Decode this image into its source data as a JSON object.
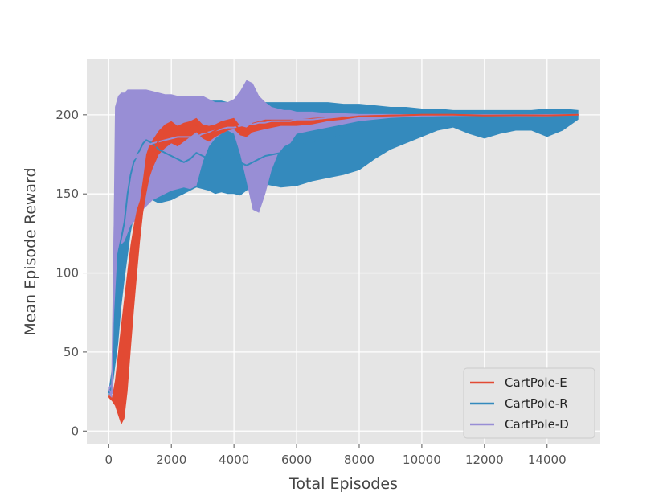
{
  "chart_data": {
    "type": "line",
    "xlabel": "Total Episodes",
    "ylabel": "Mean Episode Reward",
    "xlim": [
      -700,
      15700
    ],
    "ylim": [
      -8,
      235
    ],
    "xticks": [
      0,
      2000,
      4000,
      6000,
      8000,
      10000,
      12000,
      14000
    ],
    "yticks": [
      0,
      50,
      100,
      150,
      200
    ],
    "grid": true,
    "legend_position": "lower-right",
    "colors": {
      "background": "#e5e5e5",
      "grid": "#ffffff"
    },
    "series": [
      {
        "name": "CartPole-E",
        "color": "#e24a33",
        "x": [
          0,
          100,
          200,
          300,
          400,
          500,
          600,
          700,
          800,
          900,
          1000,
          1100,
          1200,
          1300,
          1400,
          1600,
          1800,
          2000,
          2200,
          2400,
          2600,
          2800,
          3000,
          3200,
          3400,
          3600,
          3800,
          4000,
          4200,
          4400,
          4600,
          4800,
          5000,
          5500,
          6000,
          6500,
          7000,
          7500,
          8000,
          9000,
          10000,
          11000,
          12000,
          13000,
          14000,
          15000
        ],
        "mean": [
          22,
          20,
          24,
          30,
          40,
          50,
          65,
          82,
          100,
          120,
          138,
          152,
          165,
          172,
          176,
          184,
          188,
          190,
          187,
          189,
          191,
          194,
          190,
          188,
          190,
          192,
          194,
          195,
          190,
          189,
          192,
          193,
          194,
          195,
          195,
          196,
          197,
          198,
          199,
          199.5,
          200,
          200,
          199.5,
          199.7,
          199.6,
          200
        ],
        "lower": [
          21,
          19,
          16,
          10,
          4,
          8,
          25,
          50,
          75,
          98,
          120,
          138,
          150,
          160,
          166,
          175,
          179,
          182,
          180,
          183,
          186,
          189,
          185,
          183,
          186,
          188,
          190,
          191,
          187,
          186,
          189,
          190,
          191,
          193,
          193,
          194,
          196,
          197,
          198.5,
          199,
          199.5,
          199.5,
          199,
          199.3,
          199.2,
          199.6
        ],
        "upper": [
          23,
          21,
          32,
          50,
          68,
          85,
          102,
          118,
          130,
          140,
          146,
          160,
          175,
          181,
          184,
          190,
          194,
          196,
          193,
          195,
          196,
          198,
          194,
          193,
          194,
          196,
          197,
          198,
          193,
          192,
          195,
          196,
          197,
          197,
          197,
          198,
          198.5,
          199,
          199.5,
          200,
          200.5,
          200.5,
          200,
          200.1,
          200,
          200.4
        ]
      },
      {
        "name": "CartPole-R",
        "color": "#348abd",
        "x": [
          0,
          100,
          200,
          300,
          400,
          500,
          600,
          700,
          800,
          900,
          1000,
          1100,
          1200,
          1400,
          1600,
          1800,
          2000,
          2200,
          2400,
          2600,
          2800,
          3000,
          3200,
          3400,
          3600,
          3800,
          4000,
          4200,
          4400,
          4600,
          4800,
          5000,
          5500,
          6000,
          6500,
          7000,
          7500,
          8000,
          8500,
          9000,
          9500,
          10000,
          10500,
          11000,
          11500,
          12000,
          12500,
          13000,
          13500,
          14000,
          14500,
          15000
        ],
        "mean": [
          24,
          28,
          75,
          112,
          122,
          132,
          150,
          162,
          170,
          174,
          178,
          182,
          184,
          182,
          178,
          176,
          174,
          172,
          170,
          172,
          176,
          174,
          172,
          170,
          172,
          174,
          174,
          170,
          168,
          170,
          172,
          174,
          176,
          180,
          183,
          186,
          188,
          190,
          193,
          195,
          197,
          198,
          198.5,
          199,
          199.2,
          199.4,
          199.5,
          199.6,
          199.6,
          199.7,
          199.7,
          199.8
        ],
        "lower": [
          22,
          24,
          40,
          55,
          78,
          95,
          110,
          125,
          135,
          140,
          148,
          152,
          150,
          146,
          144,
          145,
          146,
          148,
          150,
          152,
          154,
          153,
          152,
          150,
          151,
          150,
          150,
          149,
          152,
          155,
          158,
          156,
          154,
          155,
          158,
          160,
          162,
          165,
          172,
          178,
          182,
          186,
          190,
          192,
          188,
          185,
          188,
          190,
          190,
          186,
          190,
          197
        ],
        "upper": [
          26,
          40,
          135,
          165,
          172,
          178,
          182,
          186,
          190,
          193,
          196,
          198,
          200,
          202,
          204,
          206,
          207,
          208,
          208,
          208,
          209,
          209,
          209,
          209,
          209,
          208,
          208,
          208,
          208,
          208,
          208,
          208,
          208,
          208,
          208,
          208,
          207,
          207,
          206,
          205,
          205,
          204,
          204,
          203,
          203,
          203,
          203,
          203,
          203,
          204,
          204,
          203
        ]
      },
      {
        "name": "CartPole-D",
        "color": "#988ed5",
        "x": [
          0,
          100,
          200,
          300,
          400,
          500,
          600,
          700,
          800,
          900,
          1000,
          1100,
          1200,
          1400,
          1600,
          1800,
          2000,
          2200,
          2400,
          2600,
          2800,
          3000,
          3200,
          3400,
          3600,
          3800,
          4000,
          4200,
          4400,
          4600,
          4800,
          5000,
          5200,
          5400,
          5600,
          5800,
          6000,
          6500,
          7000,
          7500,
          8000,
          9000,
          10000,
          11000,
          12000,
          13000,
          14000,
          15000
        ],
        "mean": [
          26,
          24,
          150,
          155,
          158,
          162,
          166,
          170,
          172,
          174,
          176,
          178,
          180,
          182,
          183,
          184,
          185,
          186,
          186,
          186,
          186,
          188,
          189,
          190,
          191,
          192,
          192,
          193,
          194,
          194,
          195,
          195,
          196,
          196,
          196,
          196,
          197,
          197,
          198,
          198.5,
          199,
          199.4,
          199.6,
          199.7,
          199.8,
          199.8,
          199.9,
          200
        ],
        "lower": [
          24,
          20,
          80,
          115,
          118,
          120,
          125,
          130,
          132,
          134,
          138,
          140,
          142,
          146,
          148,
          150,
          152,
          153,
          154,
          153,
          155,
          170,
          180,
          185,
          188,
          190,
          188,
          175,
          158,
          140,
          138,
          150,
          165,
          175,
          180,
          182,
          188,
          190,
          192,
          194,
          196,
          198,
          199,
          199,
          199,
          199,
          199,
          199.5
        ],
        "upper": [
          28,
          30,
          205,
          212,
          214,
          214,
          216,
          216,
          216,
          216,
          216,
          216,
          216,
          215,
          214,
          213,
          213,
          212,
          212,
          212,
          212,
          212,
          210,
          208,
          208,
          208,
          210,
          215,
          222,
          220,
          212,
          208,
          205,
          204,
          203,
          203,
          202,
          202,
          201,
          201,
          200.5,
          200.5,
          200.3,
          200.3,
          200.3,
          200.3,
          200.2,
          200.2
        ]
      }
    ]
  }
}
